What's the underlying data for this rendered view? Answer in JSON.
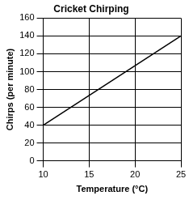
{
  "chart_data": {
    "type": "line",
    "title": "Cricket Chirping",
    "x_label": "Temperature (°C)",
    "y_label": "Chirps (per minute)",
    "x": [
      10,
      25
    ],
    "values": [
      40,
      140
    ],
    "color": "#000000",
    "xlim": [
      10,
      25
    ],
    "xticks": [
      10,
      15,
      20,
      25
    ],
    "ylim": [
      0,
      160
    ],
    "yticks": [
      0,
      20,
      40,
      60,
      80,
      100,
      120,
      140,
      160
    ],
    "grid": true
  }
}
